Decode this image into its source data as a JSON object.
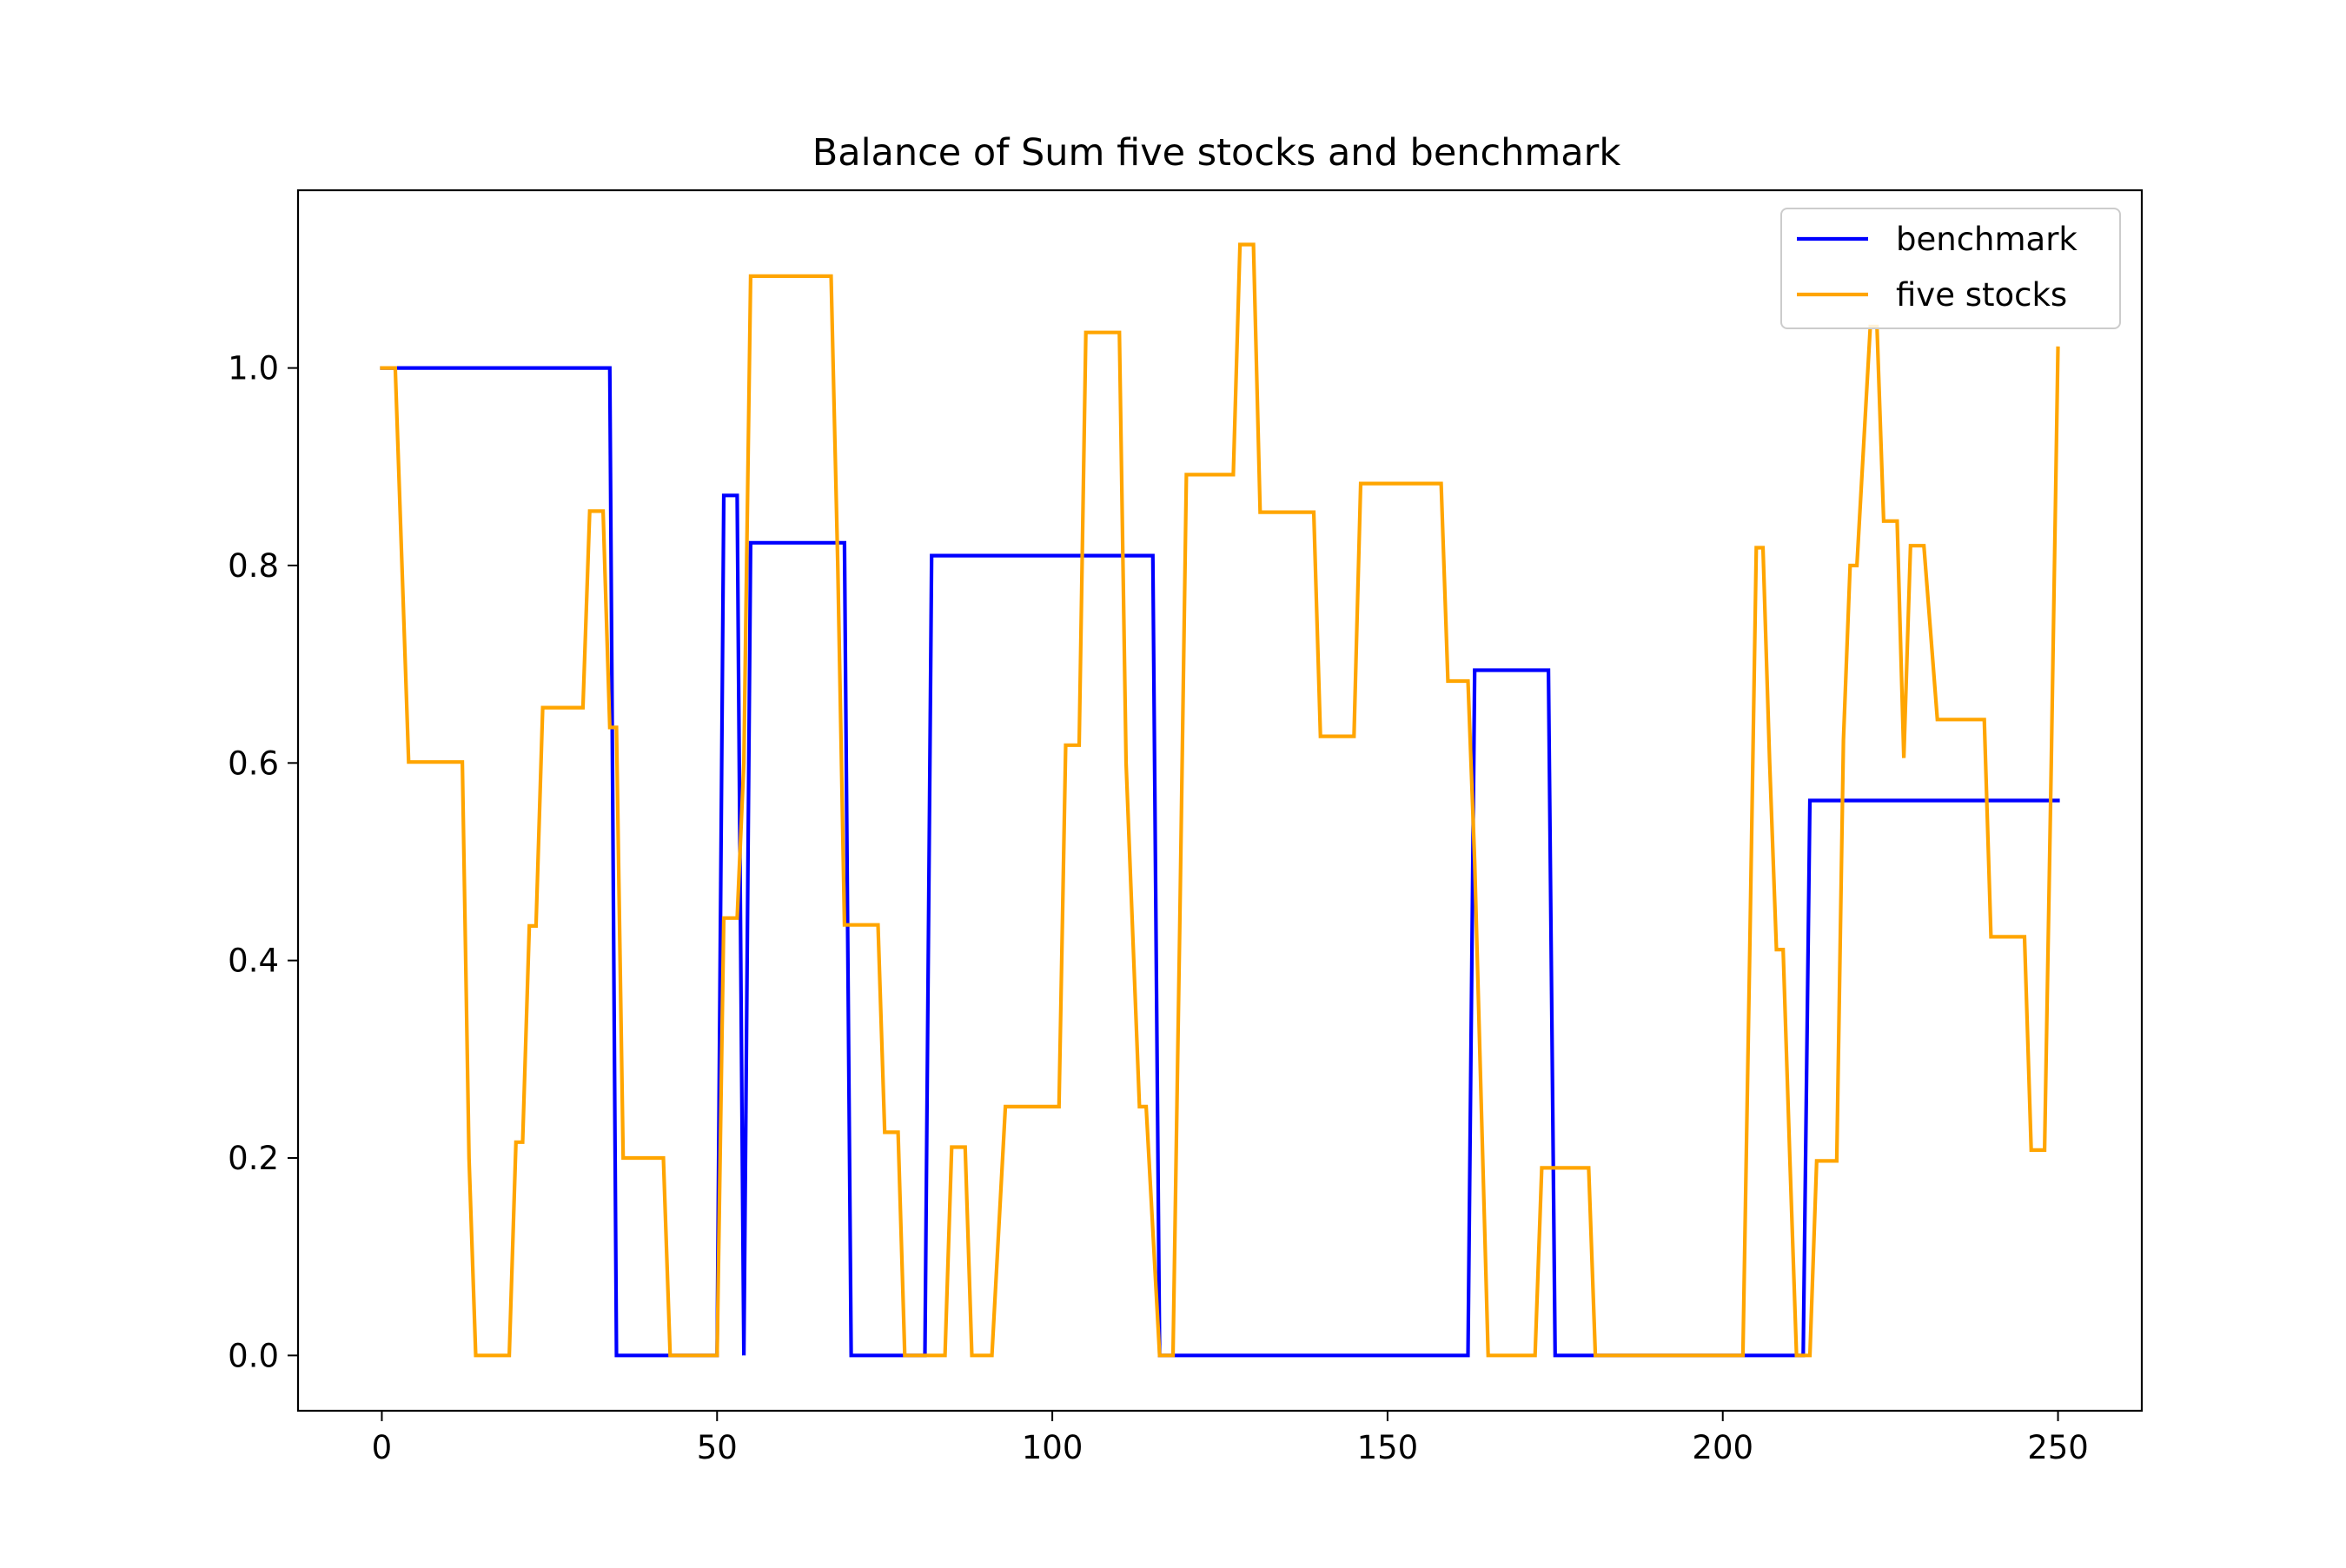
{
  "chart_data": {
    "type": "line",
    "title": "Balance of Sum five stocks and benchmark",
    "xlabel": "",
    "ylabel": "",
    "xlim": [
      -12.5,
      262.5
    ],
    "ylim": [
      -0.056,
      1.18
    ],
    "x_ticks": [
      0,
      50,
      100,
      150,
      200,
      250
    ],
    "x_tick_labels": [
      "0",
      "50",
      "100",
      "150",
      "200",
      "250"
    ],
    "y_ticks": [
      0.0,
      0.2,
      0.4,
      0.6,
      0.8,
      1.0
    ],
    "y_tick_labels": [
      "0.0",
      "0.2",
      "0.4",
      "0.6",
      "0.8",
      "1.0"
    ],
    "grid": false,
    "legend_position": "upper right",
    "series": [
      {
        "name": "benchmark",
        "color": "#0000ff",
        "x": [
          0,
          34,
          35,
          50,
          51,
          53,
          54,
          55,
          69,
          70,
          81,
          82,
          115,
          116,
          162,
          163,
          174,
          175,
          212,
          213,
          250
        ],
        "y": [
          1.0,
          1.0,
          0.0,
          0.0,
          0.871,
          0.871,
          0.0,
          0.823,
          0.823,
          0.0,
          0.0,
          0.81,
          0.81,
          0.0,
          0.0,
          0.694,
          0.694,
          0.0,
          0.0,
          0.562,
          0.562
        ]
      },
      {
        "name": "five stocks",
        "color": "#ffa500",
        "x": [
          0,
          2,
          4,
          12,
          13,
          14,
          19,
          20,
          21,
          22,
          23,
          24,
          30,
          31,
          33,
          34,
          35,
          36,
          42,
          43,
          50,
          51,
          53,
          54,
          55,
          67,
          68,
          69,
          74,
          75,
          77,
          78,
          79,
          80,
          84,
          85,
          87,
          88,
          91,
          93,
          101,
          102,
          104,
          105,
          110,
          111,
          113,
          114,
          116,
          117,
          118,
          119,
          120,
          121,
          127,
          128,
          130,
          131,
          139,
          140,
          145,
          146,
          158,
          159,
          162,
          163,
          164,
          165,
          166,
          172,
          173,
          180,
          181,
          203,
          204,
          205,
          206,
          207,
          208,
          209,
          210,
          211,
          212,
          213,
          214,
          217,
          218,
          219,
          220,
          222,
          223,
          224,
          226,
          227,
          228,
          229,
          230,
          232,
          233,
          239,
          240,
          245,
          246,
          248,
          249,
          250
        ],
        "y": [
          1.0,
          1.0,
          0.601,
          0.601,
          0.2,
          0.0,
          0.0,
          0.216,
          0.216,
          0.435,
          0.435,
          0.656,
          0.656,
          0.855,
          0.855,
          0.636,
          0.636,
          0.2,
          0.2,
          0.0,
          0.0,
          0.443,
          0.443,
          0.6,
          1.093,
          1.093,
          0.8,
          0.436,
          0.436,
          0.226,
          0.226,
          0.0,
          0.0,
          0.0,
          0.0,
          0.211,
          0.211,
          0.0,
          0.0,
          0.252,
          0.252,
          0.618,
          0.618,
          1.036,
          1.036,
          0.6,
          0.252,
          0.252,
          0.0,
          0.0,
          0.0,
          0.43,
          0.892,
          0.892,
          0.892,
          1.125,
          1.125,
          0.854,
          0.854,
          0.627,
          0.627,
          0.883,
          0.883,
          0.683,
          0.683,
          0.5,
          0.25,
          0.0,
          0.0,
          0.0,
          0.19,
          0.19,
          0.0,
          0.0,
          0.4,
          0.818,
          0.818,
          0.6,
          0.411,
          0.411,
          0.2,
          0.0,
          0.0,
          0.0,
          0.197,
          0.197,
          0.623,
          0.8,
          0.8,
          1.042,
          1.042,
          0.845,
          0.845,
          0.605,
          0.82,
          0.82,
          0.82,
          0.644,
          0.644,
          0.644,
          0.424,
          0.424,
          0.208,
          0.208,
          0.6,
          1.02
        ]
      }
    ]
  }
}
